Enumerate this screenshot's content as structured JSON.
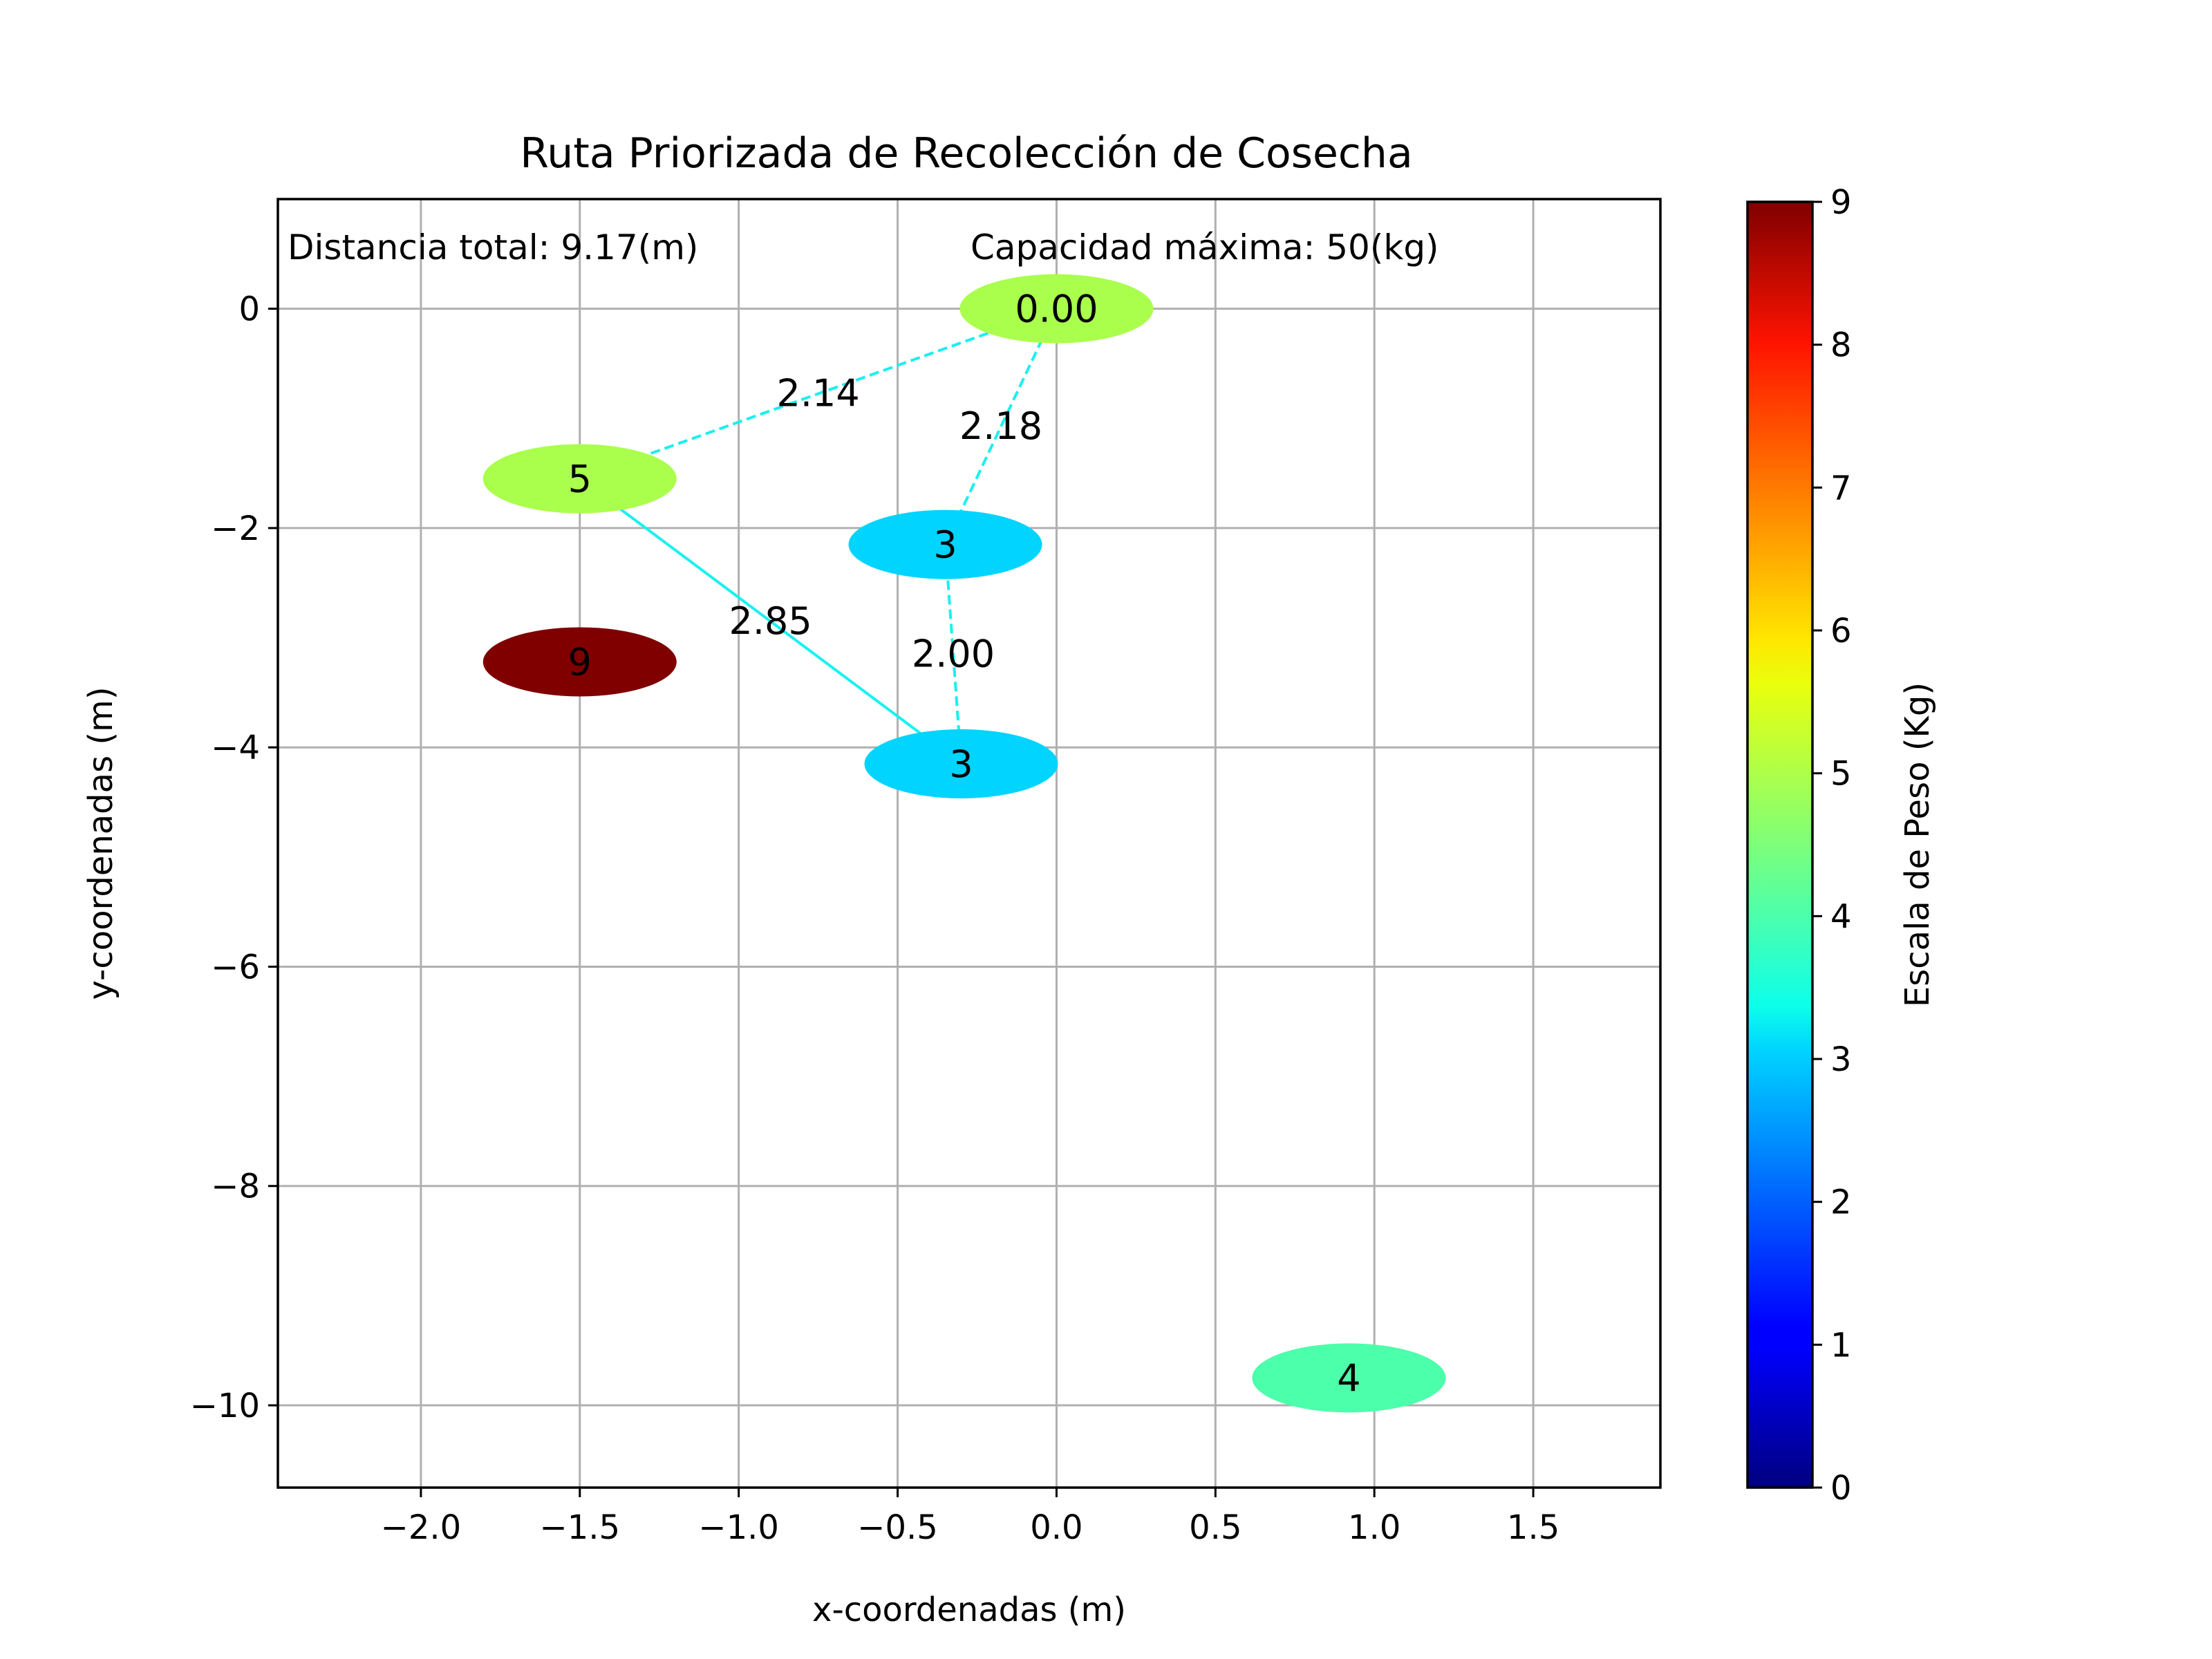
{
  "chart_data": {
    "type": "scatter",
    "title": "Ruta Priorizada de Recolección de Cosecha",
    "xlabel": "x-coordenadas (m)",
    "ylabel": "y-coordenadas (m)",
    "xlim": [
      -2.45,
      1.9
    ],
    "ylim": [
      -10.75,
      1.0
    ],
    "xticks": [
      -2.0,
      -1.5,
      -1.0,
      -0.5,
      0.0,
      0.5,
      1.0,
      1.5
    ],
    "xtick_labels": [
      "−2.0",
      "−1.5",
      "−1.0",
      "−0.5",
      "0.0",
      "0.5",
      "1.0",
      "1.5"
    ],
    "yticks": [
      0,
      -2,
      -4,
      -6,
      -8,
      -10
    ],
    "ytick_labels": [
      "0",
      "−2",
      "−4",
      "−6",
      "−8",
      "−10"
    ],
    "grid": true,
    "annotations": [
      {
        "text": "Distancia total: 9.17(m)"
      },
      {
        "text": "Capacidad máxima: 50(kg)"
      }
    ],
    "points": [
      {
        "x": 0.0,
        "y": 0.0,
        "weight": 5,
        "label": "0.00"
      },
      {
        "x": -1.5,
        "y": -1.55,
        "weight": 5,
        "label": "5"
      },
      {
        "x": -0.35,
        "y": -2.15,
        "weight": 3,
        "label": "3"
      },
      {
        "x": -1.5,
        "y": -3.22,
        "weight": 9,
        "label": "9"
      },
      {
        "x": -0.3,
        "y": -4.15,
        "weight": 3,
        "label": "3"
      },
      {
        "x": 0.92,
        "y": -9.75,
        "weight": 4,
        "label": "4"
      }
    ],
    "route_segments": [
      {
        "from": [
          0.0,
          0.0
        ],
        "to": [
          -1.5,
          -1.55
        ],
        "label": "2.14",
        "style": "dashed"
      },
      {
        "from": [
          -1.5,
          -1.55
        ],
        "to": [
          -0.3,
          -4.15
        ],
        "label": "2.85",
        "style": "solid"
      },
      {
        "from": [
          -0.3,
          -4.15
        ],
        "to": [
          -0.35,
          -2.15
        ],
        "label": "2.00",
        "style": "dashed"
      },
      {
        "from": [
          -0.35,
          -2.15
        ],
        "to": [
          0.0,
          0.0
        ],
        "label": "2.18",
        "style": "dashed"
      }
    ],
    "colorbar": {
      "label": "Escala de Peso (Kg)",
      "colormap": "jet",
      "range": [
        0,
        9
      ],
      "ticks": [
        0,
        1,
        2,
        3,
        4,
        5,
        6,
        7,
        8,
        9
      ]
    },
    "colors": {
      "route": "#19f0f0",
      "weight_3": "#00d4ff",
      "weight_4": "#4cffaa",
      "weight_5": "#a9ff4c",
      "weight_9": "#800000"
    }
  }
}
